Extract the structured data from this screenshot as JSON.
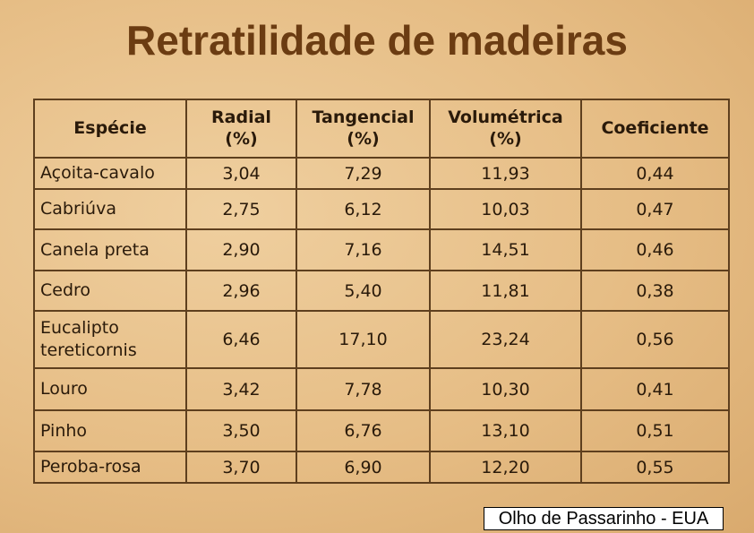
{
  "title": "Retratilidade de madeiras",
  "table": {
    "columns": [
      [
        "Espécie"
      ],
      [
        "Radial",
        "(%)"
      ],
      [
        "Tangencial",
        "(%)"
      ],
      [
        "Volumétrica",
        "(%)"
      ],
      [
        "Coeficiente"
      ]
    ],
    "rows": [
      [
        "Açoita-cavalo",
        "3,04",
        "7,29",
        "11,93",
        "0,44"
      ],
      [
        "Cabriúva",
        "2,75",
        "6,12",
        "10,03",
        "0,47"
      ],
      [
        "Canela preta",
        "2,90",
        "7,16",
        "14,51",
        "0,46"
      ],
      [
        "Cedro",
        "2,96",
        "5,40",
        "11,81",
        "0,38"
      ],
      [
        "Eucalipto tereticornis",
        "6,46",
        "17,10",
        "23,24",
        "0,56"
      ],
      [
        "Louro",
        "3,42",
        "7,78",
        "10,30",
        "0,41"
      ],
      [
        "Pinho",
        "3,50",
        "6,76",
        "13,10",
        "0,51"
      ],
      [
        "Peroba-rosa",
        "3,70",
        "6,90",
        "12,20",
        "0,55"
      ]
    ]
  },
  "footer": "Olho de Passarinho - EUA"
}
